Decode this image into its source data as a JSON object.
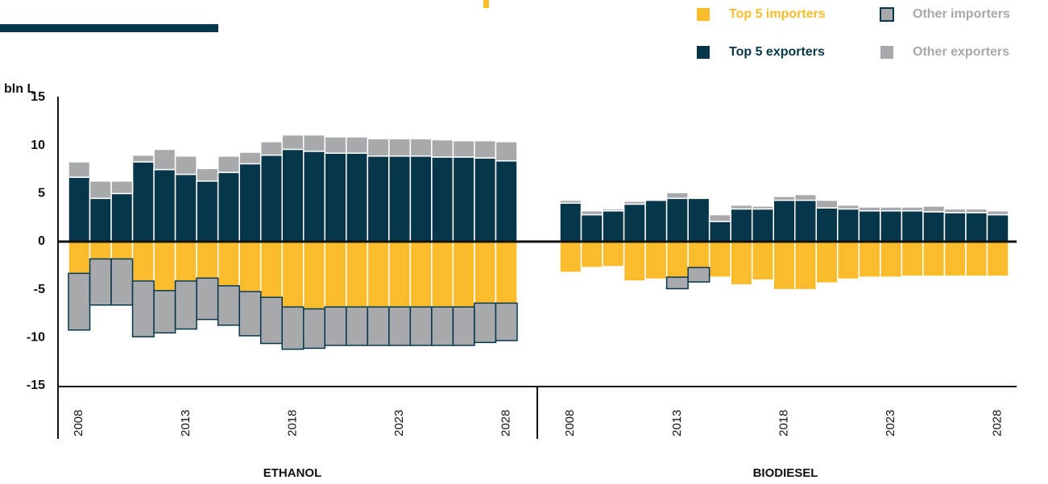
{
  "chart_data": [
    {
      "type": "bar",
      "ylabel": "bln L",
      "xlabel": "ETHANOL",
      "categories": [
        "2008",
        null,
        null,
        null,
        null,
        "2013",
        null,
        null,
        null,
        null,
        "2018",
        null,
        null,
        null,
        null,
        "2023",
        null,
        null,
        null,
        null,
        "2028"
      ],
      "ylim": [
        -15,
        15
      ],
      "yticks": [
        -15,
        -10,
        -5,
        0,
        5,
        10,
        15
      ],
      "stacked": true,
      "series": [
        {
          "name": "Top 5 importers",
          "color": "#fbbc2c",
          "values": [
            -3.3,
            -1.8,
            -1.8,
            -4.1,
            -5.1,
            -4.1,
            -3.8,
            -4.6,
            -5.2,
            -5.8,
            -6.8,
            -7.0,
            -6.8,
            -6.8,
            -6.8,
            -6.8,
            -6.8,
            -6.8,
            -6.8,
            -6.4,
            -6.4
          ]
        },
        {
          "name": "Other importers",
          "color": "#a8a9ac",
          "edge_color": "#06364a",
          "values": [
            -5.9,
            -4.8,
            -4.8,
            -5.8,
            -4.4,
            -5.0,
            -4.3,
            -4.1,
            -4.6,
            -4.8,
            -4.4,
            -4.1,
            -4.0,
            -4.0,
            -4.0,
            -4.0,
            -4.0,
            -4.0,
            -4.0,
            -4.1,
            -3.9
          ]
        },
        {
          "name": "Top 5 exporters",
          "color": "#06364a",
          "values": [
            6.7,
            4.5,
            5.0,
            8.3,
            7.5,
            7.0,
            6.3,
            7.2,
            8.1,
            9.0,
            9.6,
            9.4,
            9.2,
            9.2,
            8.9,
            8.9,
            8.9,
            8.8,
            8.8,
            8.7,
            8.4
          ]
        },
        {
          "name": "Other exporters",
          "color": "#a8a9ac",
          "values": [
            1.6,
            1.8,
            1.3,
            0.7,
            2.1,
            1.9,
            1.3,
            1.7,
            1.2,
            1.4,
            1.5,
            1.7,
            1.7,
            1.7,
            1.8,
            1.8,
            1.8,
            1.8,
            1.7,
            1.8,
            2.0
          ]
        }
      ]
    },
    {
      "type": "bar",
      "xlabel": "BIODIESEL",
      "categories": [
        "2008",
        null,
        null,
        null,
        null,
        "2013",
        null,
        null,
        null,
        null,
        "2018",
        null,
        null,
        null,
        null,
        "2023",
        null,
        null,
        null,
        null,
        "2028"
      ],
      "ylim": [
        -15,
        15
      ],
      "stacked": true,
      "series": [
        {
          "color": "#fbbc2c",
          "values": [
            -3.2,
            -2.7,
            -2.6,
            -4.1,
            -3.9,
            -3.7,
            -2.7,
            -3.7,
            -4.5,
            -4.0,
            -5.0,
            -5.0,
            -4.3,
            -3.9,
            -3.7,
            -3.7,
            -3.6,
            -3.6,
            -3.6,
            -3.6,
            -3.6
          ]
        },
        {
          "color": "#a8a9ac",
          "edge_color": "#06364a",
          "values": [
            0,
            0,
            0,
            0,
            0,
            -1.2,
            -1.5,
            0,
            0,
            0,
            0,
            0,
            0,
            0,
            0,
            0,
            0,
            0,
            0,
            0,
            0
          ]
        },
        {
          "color": "#06364a",
          "values": [
            4.0,
            2.8,
            3.2,
            3.9,
            4.3,
            4.5,
            4.5,
            2.1,
            3.4,
            3.4,
            4.3,
            4.3,
            3.5,
            3.4,
            3.2,
            3.2,
            3.2,
            3.1,
            3.0,
            3.0,
            2.8
          ]
        },
        {
          "color": "#a8a9ac",
          "values": [
            0.3,
            0.4,
            0.2,
            0.3,
            0.1,
            0.6,
            0.1,
            0.7,
            0.4,
            0.3,
            0.4,
            0.6,
            0.8,
            0.4,
            0.4,
            0.4,
            0.4,
            0.6,
            0.4,
            0.4,
            0.4
          ]
        }
      ]
    }
  ]
}
